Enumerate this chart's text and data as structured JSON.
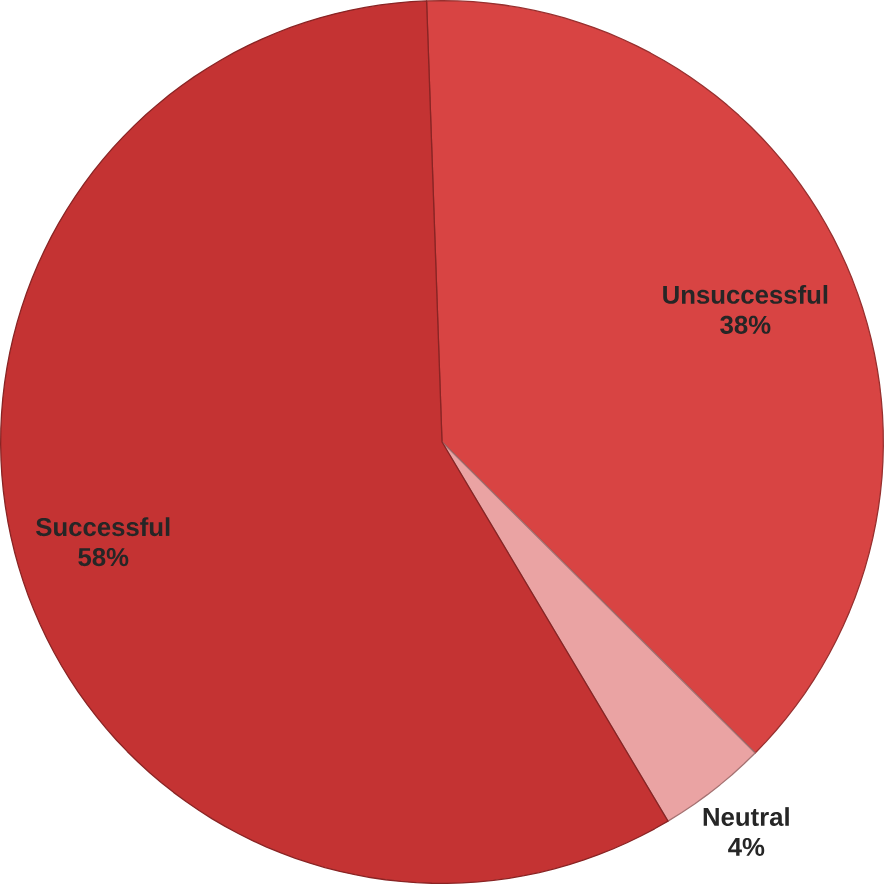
{
  "chart_data": {
    "type": "pie",
    "categories": [
      "Unsuccessful",
      "Neutral",
      "Successful"
    ],
    "values": [
      38,
      4,
      58
    ],
    "value_labels": [
      "38%",
      "4%",
      "58%"
    ],
    "colors": [
      "#d84443",
      "#eaa3a3",
      "#c43333"
    ]
  }
}
